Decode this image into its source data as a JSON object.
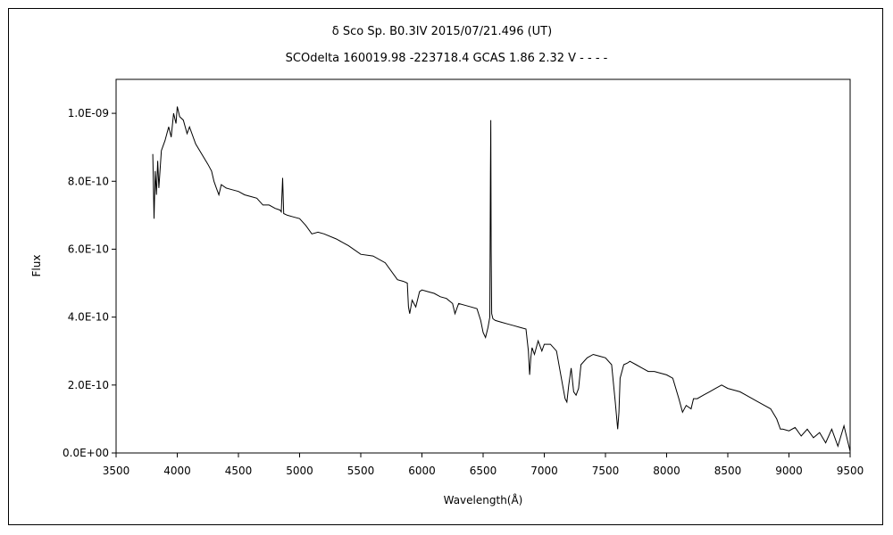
{
  "chart_data": {
    "type": "line",
    "title": "δ  Sco     Sp. B0.3IV    2015/07/21.496 (UT)",
    "subtitle": "SCOdelta 160019.98 -223718.4 GCAS 1.86 2.32  V - - - -",
    "xlabel": "Wavelength(Å)",
    "ylabel": "Flux",
    "xlim": [
      3500,
      9500
    ],
    "ylim": [
      0,
      1.1e-09
    ],
    "x_ticks": [
      "3500",
      "4000",
      "4500",
      "5000",
      "5500",
      "6000",
      "6500",
      "7000",
      "7500",
      "8000",
      "8500",
      "9000",
      "9500"
    ],
    "y_ticks": [
      "0.0E+00",
      "2.0E-10",
      "4.0E-10",
      "6.0E-10",
      "8.0E-10",
      "1.0E-09"
    ],
    "grid": false,
    "legend": "none",
    "color": "#000000",
    "series": [
      {
        "x": [
          3800,
          3810,
          3820,
          3830,
          3840,
          3850,
          3870,
          3900,
          3930,
          3950,
          3970,
          3990,
          4000,
          4020,
          4050,
          4080,
          4100,
          4150,
          4200,
          4250,
          4280,
          4300,
          4320,
          4340,
          4360,
          4400,
          4450,
          4500,
          4550,
          4600,
          4650,
          4700,
          4750,
          4800,
          4840,
          4850,
          4861,
          4870,
          4900,
          4950,
          5000,
          5050,
          5100,
          5150,
          5200,
          5300,
          5400,
          5500,
          5600,
          5700,
          5800,
          5850,
          5880,
          5890,
          5900,
          5920,
          5950,
          5980,
          6000,
          6050,
          6100,
          6150,
          6200,
          6250,
          6270,
          6290,
          6300,
          6350,
          6400,
          6450,
          6480,
          6500,
          6520,
          6540,
          6555,
          6560,
          6563,
          6566,
          6570,
          6580,
          6600,
          6650,
          6700,
          6750,
          6800,
          6850,
          6870,
          6880,
          6890,
          6900,
          6920,
          6950,
          6980,
          7000,
          7050,
          7100,
          7150,
          7170,
          7185,
          7200,
          7220,
          7240,
          7260,
          7280,
          7300,
          7350,
          7400,
          7450,
          7500,
          7550,
          7580,
          7600,
          7610,
          7620,
          7650,
          7680,
          7700,
          7750,
          7800,
          7850,
          7900,
          7950,
          8000,
          8050,
          8100,
          8130,
          8160,
          8200,
          8220,
          8250,
          8300,
          8350,
          8400,
          8450,
          8500,
          8550,
          8600,
          8650,
          8700,
          8750,
          8800,
          8850,
          8900,
          8930,
          8950,
          9000,
          9050,
          9100,
          9150,
          9200,
          9250,
          9300,
          9350,
          9400,
          9450,
          9500
        ],
        "y": [
          8.8e-10,
          6.9e-10,
          8.3e-10,
          7.6e-10,
          8.6e-10,
          7.8e-10,
          8.9e-10,
          9.2e-10,
          9.6e-10,
          9.3e-10,
          1e-09,
          9.7e-10,
          1.02e-09,
          9.9e-10,
          9.8e-10,
          9.4e-10,
          9.6e-10,
          9.1e-10,
          8.8e-10,
          8.5e-10,
          8.3e-10,
          8e-10,
          7.8e-10,
          7.6e-10,
          7.9e-10,
          7.8e-10,
          7.75e-10,
          7.7e-10,
          7.6e-10,
          7.55e-10,
          7.5e-10,
          7.3e-10,
          7.3e-10,
          7.2e-10,
          7.15e-10,
          7.1e-10,
          8.1e-10,
          7.05e-10,
          7e-10,
          6.95e-10,
          6.9e-10,
          6.7e-10,
          6.45e-10,
          6.5e-10,
          6.45e-10,
          6.3e-10,
          6.1e-10,
          5.85e-10,
          5.8e-10,
          5.6e-10,
          5.1e-10,
          5.05e-10,
          5e-10,
          4.3e-10,
          4.1e-10,
          4.5e-10,
          4.3e-10,
          4.75e-10,
          4.8e-10,
          4.75e-10,
          4.7e-10,
          4.6e-10,
          4.55e-10,
          4.4e-10,
          4.1e-10,
          4.3e-10,
          4.4e-10,
          4.35e-10,
          4.3e-10,
          4.25e-10,
          3.9e-10,
          3.55e-10,
          3.4e-10,
          3.7e-10,
          4e-10,
          8.2e-10,
          9.8e-10,
          6e-10,
          4.1e-10,
          3.95e-10,
          3.9e-10,
          3.85e-10,
          3.8e-10,
          3.75e-10,
          3.7e-10,
          3.65e-10,
          3e-10,
          2.3e-10,
          2.8e-10,
          3.1e-10,
          2.9e-10,
          3.3e-10,
          3e-10,
          3.2e-10,
          3.2e-10,
          3e-10,
          2e-10,
          1.6e-10,
          1.5e-10,
          2e-10,
          2.5e-10,
          1.8e-10,
          1.7e-10,
          1.9e-10,
          2.6e-10,
          2.8e-10,
          2.9e-10,
          2.85e-10,
          2.8e-10,
          2.6e-10,
          1.5e-10,
          7e-11,
          1.2e-10,
          2.2e-10,
          2.6e-10,
          2.65e-10,
          2.7e-10,
          2.6e-10,
          2.5e-10,
          2.4e-10,
          2.4e-10,
          2.35e-10,
          2.3e-10,
          2.2e-10,
          1.6e-10,
          1.2e-10,
          1.4e-10,
          1.3e-10,
          1.6e-10,
          1.6e-10,
          1.7e-10,
          1.8e-10,
          1.9e-10,
          2e-10,
          1.9e-10,
          1.85e-10,
          1.8e-10,
          1.7e-10,
          1.6e-10,
          1.5e-10,
          1.4e-10,
          1.3e-10,
          1e-10,
          7e-11,
          7e-11,
          6.5e-11,
          7.5e-11,
          5e-11,
          7e-11,
          4.5e-11,
          6e-11,
          3e-11,
          7e-11,
          2e-11,
          8e-11,
          5e-12
        ]
      }
    ]
  }
}
